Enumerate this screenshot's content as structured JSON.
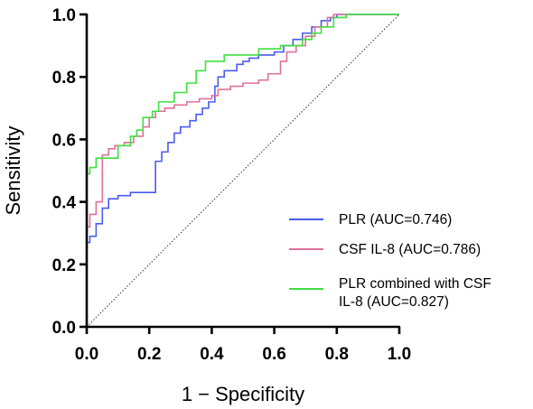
{
  "chart_data": {
    "type": "line",
    "title": "",
    "xlabel": "1 − Specificity",
    "ylabel": "Sensitivity",
    "xlim": [
      0,
      1
    ],
    "ylim": [
      0,
      1
    ],
    "xticks": [
      "0.0",
      "0.2",
      "0.4",
      "0.6",
      "0.8",
      "1.0"
    ],
    "yticks": [
      "0.0",
      "0.2",
      "0.4",
      "0.6",
      "0.8",
      "1.0"
    ],
    "grid": false,
    "legend_position": "bottom-right",
    "reference_line": {
      "x": [
        0,
        1
      ],
      "y": [
        0,
        1
      ],
      "style": "dotted"
    },
    "series": [
      {
        "name": "PLR (AUC=0.746)",
        "legend_lines": [
          "PLR (AUC=0.746)"
        ],
        "color": "#4a5cf0",
        "x": [
          0,
          0,
          0.01,
          0.01,
          0.03,
          0.03,
          0.05,
          0.05,
          0.07,
          0.07,
          0.1,
          0.1,
          0.14,
          0.14,
          0.22,
          0.22,
          0.24,
          0.24,
          0.26,
          0.26,
          0.28,
          0.28,
          0.3,
          0.3,
          0.33,
          0.33,
          0.35,
          0.35,
          0.37,
          0.37,
          0.39,
          0.39,
          0.41,
          0.41,
          0.42,
          0.42,
          0.44,
          0.44,
          0.48,
          0.48,
          0.5,
          0.5,
          0.52,
          0.52,
          0.55,
          0.55,
          0.6,
          0.6,
          0.63,
          0.63,
          0.66,
          0.66,
          0.69,
          0.69,
          0.72,
          0.72,
          0.75,
          0.75,
          0.78,
          0.78,
          0.8,
          0.8,
          1
        ],
        "y": [
          0,
          0.27,
          0.27,
          0.29,
          0.29,
          0.33,
          0.33,
          0.38,
          0.38,
          0.41,
          0.41,
          0.42,
          0.42,
          0.43,
          0.43,
          0.53,
          0.53,
          0.56,
          0.56,
          0.59,
          0.59,
          0.62,
          0.62,
          0.64,
          0.64,
          0.66,
          0.66,
          0.68,
          0.68,
          0.7,
          0.7,
          0.72,
          0.72,
          0.77,
          0.77,
          0.8,
          0.8,
          0.82,
          0.82,
          0.84,
          0.84,
          0.85,
          0.85,
          0.86,
          0.86,
          0.87,
          0.87,
          0.88,
          0.88,
          0.9,
          0.9,
          0.92,
          0.92,
          0.94,
          0.94,
          0.96,
          0.96,
          0.98,
          0.98,
          0.99,
          0.99,
          1.0,
          1.0
        ]
      },
      {
        "name": "CSF IL-8 (AUC=0.786)",
        "legend_lines": [
          "CSF IL-8 (AUC=0.786)"
        ],
        "color": "#e0709a",
        "x": [
          0,
          0,
          0.01,
          0.01,
          0.03,
          0.03,
          0.05,
          0.05,
          0.07,
          0.07,
          0.09,
          0.09,
          0.12,
          0.12,
          0.15,
          0.15,
          0.18,
          0.18,
          0.2,
          0.2,
          0.22,
          0.22,
          0.25,
          0.25,
          0.28,
          0.28,
          0.32,
          0.32,
          0.36,
          0.36,
          0.4,
          0.4,
          0.42,
          0.42,
          0.46,
          0.46,
          0.5,
          0.5,
          0.55,
          0.55,
          0.58,
          0.58,
          0.62,
          0.62,
          0.64,
          0.64,
          0.67,
          0.67,
          0.7,
          0.7,
          0.73,
          0.73,
          0.77,
          0.77,
          0.79,
          0.79,
          0.82,
          0.82,
          1
        ],
        "y": [
          0,
          0.32,
          0.32,
          0.36,
          0.36,
          0.4,
          0.4,
          0.55,
          0.55,
          0.57,
          0.57,
          0.58,
          0.58,
          0.59,
          0.59,
          0.61,
          0.61,
          0.64,
          0.64,
          0.67,
          0.67,
          0.69,
          0.69,
          0.7,
          0.7,
          0.71,
          0.71,
          0.72,
          0.72,
          0.73,
          0.73,
          0.74,
          0.74,
          0.76,
          0.76,
          0.77,
          0.77,
          0.78,
          0.78,
          0.79,
          0.79,
          0.81,
          0.81,
          0.85,
          0.85,
          0.88,
          0.88,
          0.9,
          0.9,
          0.93,
          0.93,
          0.96,
          0.96,
          0.99,
          0.99,
          1.0,
          1.0,
          1.0,
          1.0
        ]
      },
      {
        "name": "PLR combined with CSF IL-8 (AUC=0.827)",
        "legend_lines": [
          "PLR combined with CSF",
          "IL-8 (AUC=0.827)"
        ],
        "color": "#3ee03e",
        "x": [
          0,
          0,
          0.01,
          0.01,
          0.03,
          0.03,
          0.1,
          0.1,
          0.14,
          0.14,
          0.16,
          0.16,
          0.18,
          0.18,
          0.21,
          0.21,
          0.23,
          0.23,
          0.28,
          0.28,
          0.32,
          0.32,
          0.35,
          0.35,
          0.38,
          0.38,
          0.44,
          0.44,
          0.55,
          0.55,
          0.62,
          0.62,
          0.69,
          0.69,
          0.72,
          0.72,
          0.75,
          0.75,
          0.79,
          0.79,
          0.83,
          0.83,
          1
        ],
        "y": [
          0,
          0.49,
          0.49,
          0.51,
          0.51,
          0.54,
          0.54,
          0.58,
          0.58,
          0.61,
          0.61,
          0.63,
          0.63,
          0.67,
          0.67,
          0.69,
          0.69,
          0.72,
          0.72,
          0.75,
          0.75,
          0.78,
          0.78,
          0.82,
          0.82,
          0.85,
          0.85,
          0.87,
          0.87,
          0.89,
          0.89,
          0.9,
          0.9,
          0.92,
          0.92,
          0.94,
          0.94,
          0.96,
          0.96,
          0.99,
          0.99,
          1.0,
          1.0
        ]
      }
    ]
  }
}
